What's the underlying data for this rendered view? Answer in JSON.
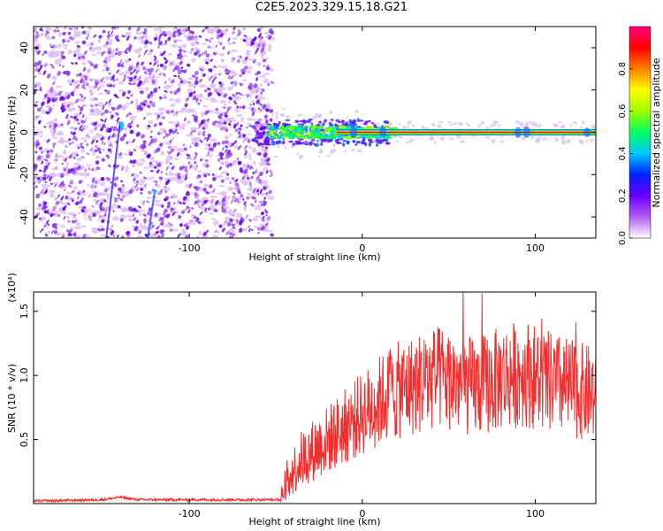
{
  "title": "C2E5.2023.329.15.18.G21",
  "chart_data": [
    {
      "type": "heatmap",
      "xlabel": "Height of straight line (km)",
      "ylabel": "Frequency (Hz)",
      "xlim": [
        -190,
        135
      ],
      "ylim": [
        -50,
        50
      ],
      "xticks": [
        -100,
        0,
        100
      ],
      "yticks": [
        -40,
        -20,
        0,
        20,
        40
      ],
      "colorbar": {
        "label": "Normalized spectral amplitude",
        "range": [
          0,
          1
        ],
        "ticks": [
          "0.0",
          "0.2",
          "0.4",
          "0.6",
          "0.8"
        ],
        "colors": [
          "#ffffff",
          "#b15cf0",
          "#6a00ff",
          "#0020ff",
          "#00c8ff",
          "#00ff60",
          "#a0ff00",
          "#ffff00",
          "#ff8000",
          "#ff0000",
          "#ff0080"
        ]
      },
      "features": [
        {
          "name": "noise",
          "x_range": [
            -190,
            -52
          ],
          "freq_range": [
            -50,
            50
          ]
        },
        {
          "name": "signal",
          "x_range": [
            -65,
            135
          ],
          "freq": 0
        }
      ]
    },
    {
      "type": "line",
      "xlabel": "Height of straight line (km)",
      "ylabel": "SNR (10 * v/v)",
      "scale_label": "(x10⁴)",
      "xlim": [
        -190,
        135
      ],
      "ylim": [
        0,
        1.65
      ],
      "xticks": [
        -100,
        0,
        100
      ],
      "yticks": [
        "0.5",
        "1.0",
        "1.5"
      ],
      "ytick_values": [
        0.5,
        1.0,
        1.5
      ],
      "color": "#ef3030",
      "x": [
        -190,
        -150,
        -140,
        -130,
        -100,
        -60,
        -47,
        -45,
        -42,
        -35,
        -25,
        -15,
        -5,
        5,
        15,
        25,
        35,
        45,
        55,
        65,
        75,
        85,
        95,
        105,
        115,
        125,
        135
      ],
      "values": [
        0.02,
        0.03,
        0.05,
        0.03,
        0.03,
        0.03,
        0.03,
        0.12,
        0.22,
        0.35,
        0.45,
        0.55,
        0.65,
        0.75,
        0.85,
        0.9,
        0.95,
        0.98,
        0.95,
        0.9,
        0.95,
        1.0,
        1.02,
        0.95,
        0.92,
        0.88,
        0.85
      ]
    }
  ]
}
